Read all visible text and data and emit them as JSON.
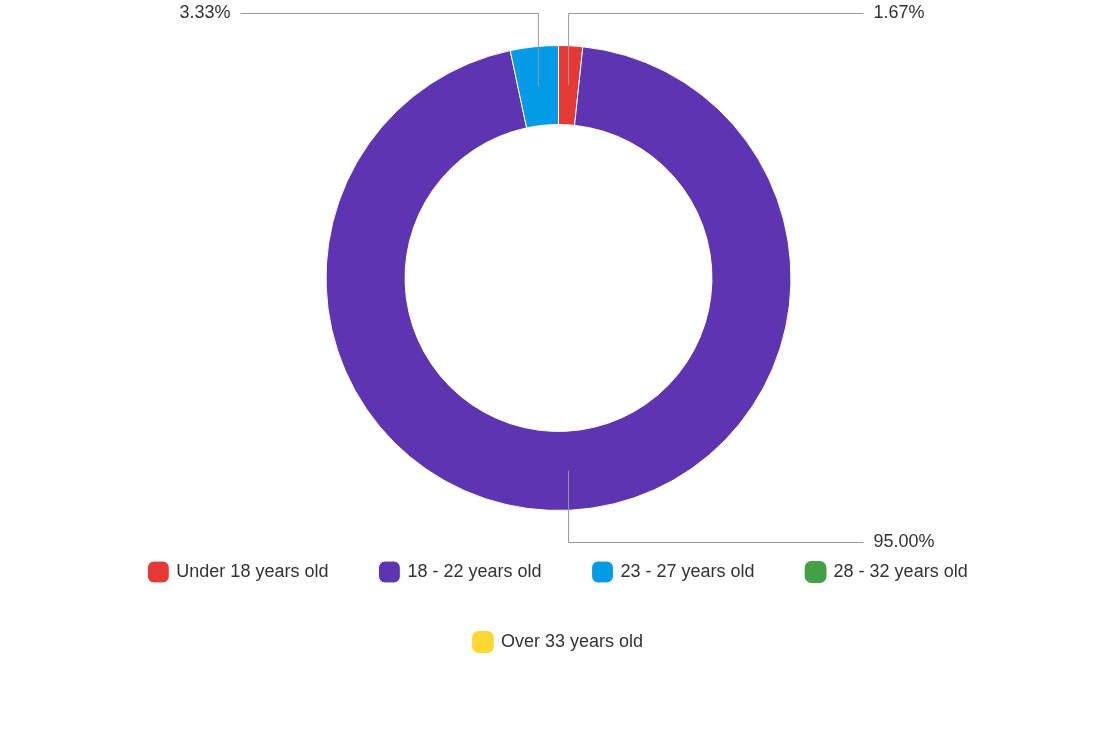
{
  "chart_data": {
    "type": "donut",
    "categories": [
      "Under 18 years old",
      "18 - 22 years old",
      "23 - 27 years old",
      "28 - 32 years old",
      "Over 33 years old"
    ],
    "values": [
      1.67,
      95.0,
      3.33,
      0,
      0
    ],
    "colors": [
      "#e53935",
      "#5e35b1",
      "#039be5",
      "#43a047",
      "#fdd835"
    ],
    "value_labels": [
      "1.67%",
      "95.00%",
      "3.33%",
      null,
      null
    ],
    "legend": "bottom"
  }
}
